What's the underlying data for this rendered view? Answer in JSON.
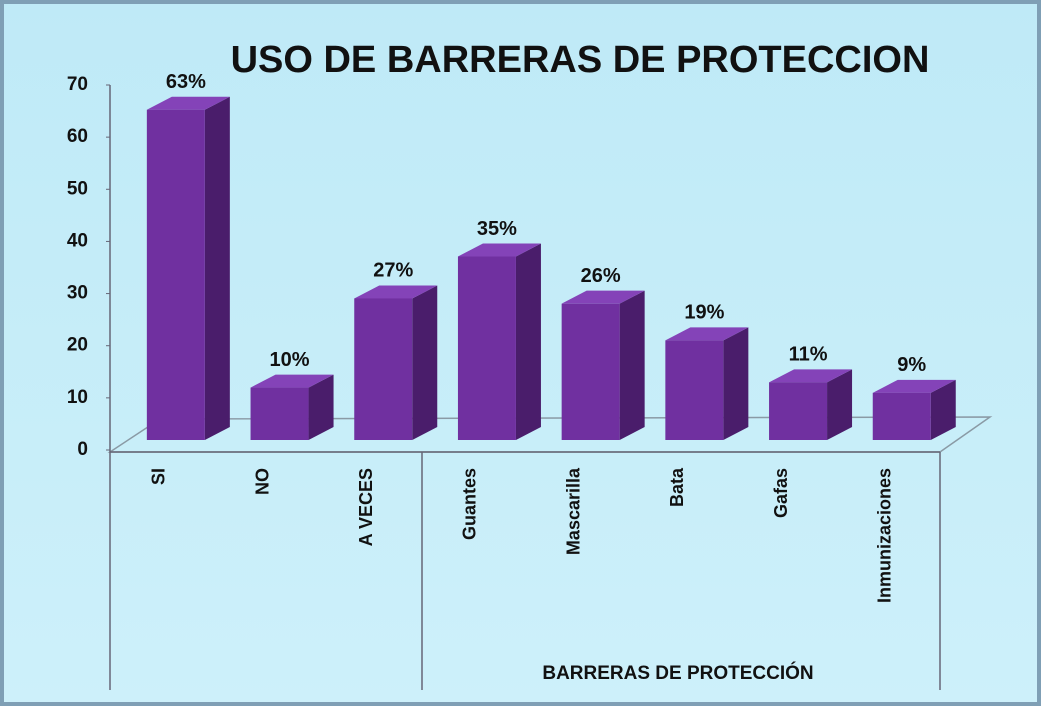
{
  "chart_data": {
    "type": "bar3d",
    "title": "USO DE BARRERAS DE PROTECCION",
    "categories": [
      "SI",
      "NO",
      "A VECES",
      "Guantes",
      "Mascarilla",
      "Bata",
      "Gafas",
      "Inmunizaciones"
    ],
    "values": [
      63,
      10,
      27,
      35,
      26,
      19,
      11,
      9
    ],
    "value_labels": [
      "63%",
      "10%",
      "27%",
      "35%",
      "26%",
      "19%",
      "11%",
      "9%"
    ],
    "color": "#7030a0",
    "group_label": "BARRERAS DE PROTECCIÓN",
    "ylim": [
      0,
      70
    ],
    "yticks": [
      0,
      10,
      20,
      30,
      40,
      50,
      60,
      70
    ]
  }
}
